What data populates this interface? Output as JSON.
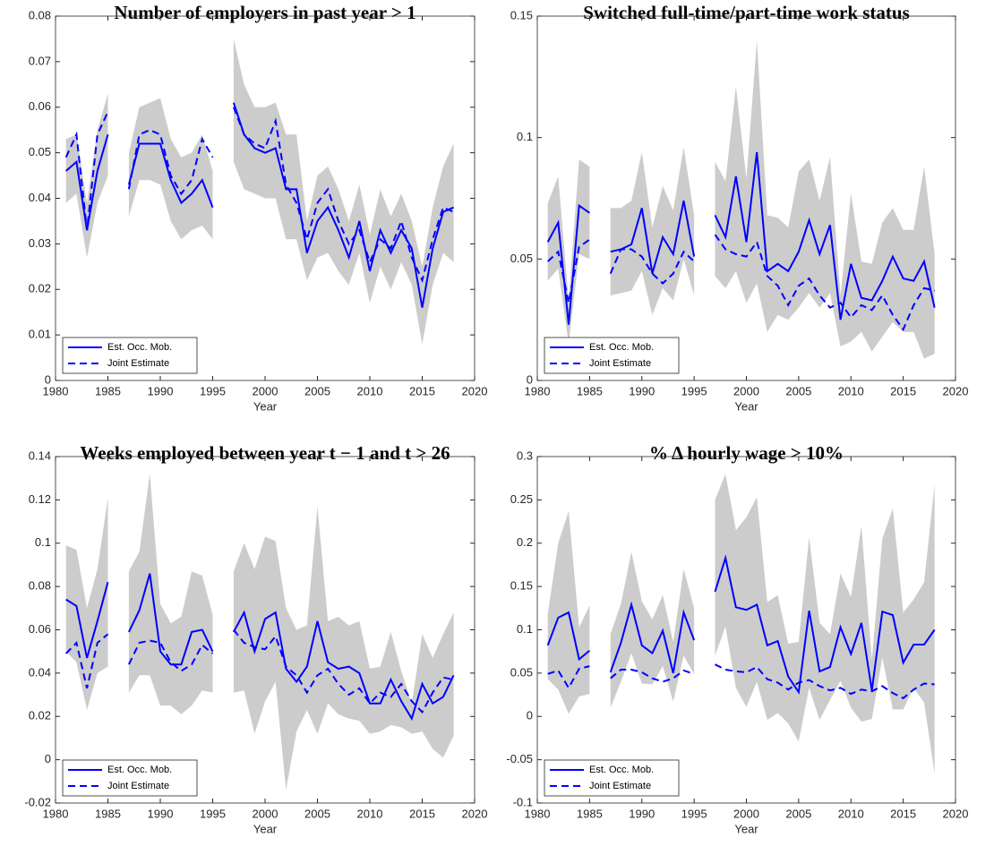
{
  "chart_data": [
    {
      "type": "line",
      "title": "Number of employers in past year > 1",
      "xlabel": "Year",
      "x": [
        1981,
        1982,
        1983,
        1984,
        1985,
        1986,
        1987,
        1988,
        1989,
        1990,
        1991,
        1992,
        1993,
        1994,
        1995,
        1996,
        1997,
        1998,
        1999,
        2000,
        2001,
        2002,
        2003,
        2004,
        2005,
        2006,
        2007,
        2008,
        2009,
        2010,
        2011,
        2012,
        2013,
        2014,
        2015,
        2016,
        2017,
        2018
      ],
      "xlim": [
        1980,
        2020
      ],
      "xticks": [
        1980,
        1985,
        1990,
        1995,
        2000,
        2005,
        2010,
        2015,
        2020
      ],
      "ylim": [
        0,
        0.08
      ],
      "yticks": [
        0,
        0.01,
        0.02,
        0.03,
        0.04,
        0.05,
        0.06,
        0.07,
        0.08
      ],
      "legend": "lower left",
      "series": [
        {
          "name": "Est. Occ. Mob.",
          "color": "#0000ff",
          "dash": false,
          "values": [
            0.046,
            0.048,
            0.033,
            0.046,
            0.054,
            null,
            0.043,
            0.052,
            0.052,
            0.052,
            0.044,
            0.039,
            0.041,
            0.044,
            0.038,
            null,
            0.061,
            0.054,
            0.051,
            0.05,
            0.051,
            0.042,
            0.042,
            0.028,
            0.035,
            0.038,
            0.033,
            0.027,
            0.035,
            0.024,
            0.033,
            0.028,
            0.033,
            0.029,
            0.016,
            0.029,
            0.037,
            0.038
          ]
        },
        {
          "name": "Joint Estimate",
          "color": "#0000ff",
          "dash": true,
          "values": [
            0.049,
            0.054,
            0.033,
            0.054,
            0.059,
            null,
            0.042,
            0.054,
            0.055,
            0.054,
            0.045,
            0.041,
            0.044,
            0.053,
            0.049,
            null,
            0.06,
            0.054,
            0.052,
            0.051,
            0.057,
            0.043,
            0.039,
            0.031,
            0.039,
            0.042,
            0.035,
            0.03,
            0.033,
            0.026,
            0.031,
            0.029,
            0.035,
            0.027,
            0.022,
            0.031,
            0.038,
            0.037
          ]
        }
      ],
      "band": {
        "color": "#cccccc",
        "lower": [
          0.039,
          0.041,
          0.027,
          0.039,
          0.045,
          null,
          0.036,
          0.044,
          0.044,
          0.043,
          0.035,
          0.031,
          0.033,
          0.034,
          0.031,
          null,
          0.048,
          0.042,
          0.041,
          0.04,
          0.04,
          0.031,
          0.031,
          0.022,
          0.027,
          0.028,
          0.024,
          0.021,
          0.028,
          0.017,
          0.025,
          0.02,
          0.026,
          0.021,
          0.008,
          0.021,
          0.028,
          0.026
        ],
        "upper": [
          0.053,
          0.054,
          0.039,
          0.055,
          0.063,
          null,
          0.05,
          0.06,
          0.061,
          0.062,
          0.053,
          0.049,
          0.05,
          0.054,
          0.046,
          null,
          0.075,
          0.065,
          0.06,
          0.06,
          0.061,
          0.054,
          0.054,
          0.035,
          0.045,
          0.047,
          0.042,
          0.035,
          0.043,
          0.032,
          0.042,
          0.036,
          0.041,
          0.035,
          0.025,
          0.038,
          0.047,
          0.052
        ]
      }
    },
    {
      "type": "line",
      "title": "Switched full-time/part-time work status",
      "xlabel": "Year",
      "x": [
        1981,
        1982,
        1983,
        1984,
        1985,
        1986,
        1987,
        1988,
        1989,
        1990,
        1991,
        1992,
        1993,
        1994,
        1995,
        1996,
        1997,
        1998,
        1999,
        2000,
        2001,
        2002,
        2003,
        2004,
        2005,
        2006,
        2007,
        2008,
        2009,
        2010,
        2011,
        2012,
        2013,
        2014,
        2015,
        2016,
        2017,
        2018
      ],
      "xlim": [
        1980,
        2020
      ],
      "xticks": [
        1980,
        1985,
        1990,
        1995,
        2000,
        2005,
        2010,
        2015,
        2020
      ],
      "ylim": [
        0,
        0.15
      ],
      "yticks": [
        0,
        0.05,
        0.1,
        0.15
      ],
      "legend": "lower left",
      "series": [
        {
          "name": "Est. Occ. Mob.",
          "color": "#0000ff",
          "dash": false,
          "values": [
            0.057,
            0.065,
            0.023,
            0.072,
            0.069,
            null,
            0.053,
            0.054,
            0.056,
            0.071,
            0.044,
            0.059,
            0.052,
            0.074,
            0.051,
            null,
            0.068,
            0.059,
            0.084,
            0.057,
            0.094,
            0.045,
            0.048,
            0.045,
            0.053,
            0.066,
            0.052,
            0.064,
            0.025,
            0.048,
            0.034,
            0.033,
            0.041,
            0.051,
            0.042,
            0.041,
            0.049,
            0.03
          ]
        },
        {
          "name": "Joint Estimate",
          "color": "#0000ff",
          "dash": true,
          "values": [
            0.049,
            0.053,
            0.032,
            0.055,
            0.058,
            null,
            0.044,
            0.054,
            0.054,
            0.051,
            0.044,
            0.04,
            0.044,
            0.053,
            0.049,
            null,
            0.06,
            0.054,
            0.052,
            0.051,
            0.057,
            0.043,
            0.039,
            0.031,
            0.039,
            0.042,
            0.035,
            0.03,
            0.032,
            0.026,
            0.031,
            0.029,
            0.035,
            0.027,
            0.021,
            0.031,
            0.038,
            0.037
          ]
        }
      ],
      "band": {
        "color": "#cccccc",
        "lower": [
          0.041,
          0.046,
          0.015,
          0.052,
          0.05,
          null,
          0.035,
          0.036,
          0.037,
          0.045,
          0.027,
          0.038,
          0.033,
          0.05,
          0.035,
          null,
          0.043,
          0.038,
          0.045,
          0.032,
          0.04,
          0.02,
          0.027,
          0.025,
          0.03,
          0.036,
          0.03,
          0.036,
          0.014,
          0.016,
          0.02,
          0.012,
          0.018,
          0.024,
          0.02,
          0.02,
          0.009,
          0.011
        ],
        "upper": [
          0.073,
          0.084,
          0.033,
          0.091,
          0.088,
          null,
          0.071,
          0.071,
          0.074,
          0.094,
          0.063,
          0.08,
          0.07,
          0.096,
          0.068,
          null,
          0.09,
          0.082,
          0.121,
          0.083,
          0.14,
          0.068,
          0.067,
          0.063,
          0.086,
          0.091,
          0.074,
          0.092,
          0.035,
          0.077,
          0.049,
          0.048,
          0.065,
          0.071,
          0.062,
          0.062,
          0.088,
          0.052
        ]
      }
    },
    {
      "type": "line",
      "title": "Weeks employed between year t − 1 and t > 26",
      "xlabel": "Year",
      "x": [
        1981,
        1982,
        1983,
        1984,
        1985,
        1986,
        1987,
        1988,
        1989,
        1990,
        1991,
        1992,
        1993,
        1994,
        1995,
        1996,
        1997,
        1998,
        1999,
        2000,
        2001,
        2002,
        2003,
        2004,
        2005,
        2006,
        2007,
        2008,
        2009,
        2010,
        2011,
        2012,
        2013,
        2014,
        2015,
        2016,
        2017,
        2018
      ],
      "xlim": [
        1980,
        2020
      ],
      "xticks": [
        1980,
        1985,
        1990,
        1995,
        2000,
        2005,
        2010,
        2015,
        2020
      ],
      "ylim": [
        -0.02,
        0.14
      ],
      "yticks": [
        -0.02,
        0,
        0.02,
        0.04,
        0.06,
        0.08,
        0.1,
        0.12,
        0.14
      ],
      "legend": "lower left",
      "series": [
        {
          "name": "Est. Occ. Mob.",
          "color": "#0000ff",
          "dash": false,
          "values": [
            0.074,
            0.071,
            0.047,
            0.064,
            0.082,
            null,
            0.059,
            0.069,
            0.086,
            0.05,
            0.044,
            0.044,
            0.059,
            0.06,
            0.05,
            null,
            0.059,
            0.068,
            0.05,
            0.065,
            0.068,
            0.042,
            0.036,
            0.043,
            0.064,
            0.045,
            0.042,
            0.043,
            0.04,
            0.026,
            0.026,
            0.037,
            0.027,
            0.019,
            0.035,
            0.026,
            0.029,
            0.039
          ]
        },
        {
          "name": "Joint Estimate",
          "color": "#0000ff",
          "dash": true,
          "values": [
            0.049,
            0.054,
            0.033,
            0.054,
            0.058,
            null,
            0.044,
            0.054,
            0.055,
            0.054,
            0.045,
            0.041,
            0.044,
            0.053,
            0.049,
            null,
            0.06,
            0.054,
            0.052,
            0.051,
            0.057,
            0.043,
            0.039,
            0.031,
            0.039,
            0.042,
            0.035,
            0.03,
            0.033,
            0.026,
            0.031,
            0.029,
            0.035,
            0.027,
            0.022,
            0.031,
            0.038,
            0.037
          ]
        }
      ],
      "band": {
        "color": "#cccccc",
        "lower": [
          0.05,
          0.045,
          0.023,
          0.04,
          0.043,
          null,
          0.031,
          0.039,
          0.039,
          0.025,
          0.025,
          0.021,
          0.025,
          0.032,
          0.031,
          null,
          0.031,
          0.032,
          0.012,
          0.027,
          0.036,
          -0.014,
          0.013,
          0.023,
          0.012,
          0.026,
          0.021,
          0.019,
          0.018,
          0.012,
          0.013,
          0.016,
          0.015,
          0.012,
          0.013,
          0.005,
          0.001,
          0.011
        ],
        "upper": [
          0.099,
          0.097,
          0.07,
          0.088,
          0.121,
          null,
          0.087,
          0.096,
          0.132,
          0.072,
          0.063,
          0.066,
          0.087,
          0.085,
          0.067,
          null,
          0.087,
          0.1,
          0.088,
          0.103,
          0.101,
          0.07,
          0.06,
          0.062,
          0.117,
          0.064,
          0.066,
          0.062,
          0.064,
          0.042,
          0.043,
          0.059,
          0.041,
          0.026,
          0.058,
          0.047,
          0.058,
          0.068
        ]
      }
    },
    {
      "type": "line",
      "title": "% Δ hourly wage > 10%",
      "xlabel": "Year",
      "x": [
        1981,
        1982,
        1983,
        1984,
        1985,
        1986,
        1987,
        1988,
        1989,
        1990,
        1991,
        1992,
        1993,
        1994,
        1995,
        1996,
        1997,
        1998,
        1999,
        2000,
        2001,
        2002,
        2003,
        2004,
        2005,
        2006,
        2007,
        2008,
        2009,
        2010,
        2011,
        2012,
        2013,
        2014,
        2015,
        2016,
        2017,
        2018
      ],
      "xlim": [
        1980,
        2020
      ],
      "xticks": [
        1980,
        1985,
        1990,
        1995,
        2000,
        2005,
        2010,
        2015,
        2020
      ],
      "ylim": [
        -0.1,
        0.3
      ],
      "yticks": [
        -0.1,
        -0.05,
        0,
        0.05,
        0.1,
        0.15,
        0.2,
        0.25,
        0.3
      ],
      "legend": "lower left",
      "series": [
        {
          "name": "Est. Occ. Mob.",
          "color": "#0000ff",
          "dash": false,
          "values": [
            0.082,
            0.114,
            0.12,
            0.066,
            0.076,
            null,
            0.051,
            0.085,
            0.129,
            0.082,
            0.073,
            0.099,
            0.05,
            0.12,
            0.088,
            null,
            0.144,
            0.183,
            0.126,
            0.123,
            0.129,
            0.082,
            0.087,
            0.046,
            0.028,
            0.122,
            0.052,
            0.057,
            0.103,
            0.072,
            0.108,
            0.03,
            0.121,
            0.117,
            0.062,
            0.083,
            0.083,
            0.1
          ]
        },
        {
          "name": "Joint Estimate",
          "color": "#0000ff",
          "dash": true,
          "values": [
            0.049,
            0.053,
            0.033,
            0.055,
            0.058,
            null,
            0.044,
            0.054,
            0.054,
            0.051,
            0.044,
            0.04,
            0.044,
            0.053,
            0.049,
            null,
            0.06,
            0.054,
            0.052,
            0.051,
            0.057,
            0.043,
            0.039,
            0.031,
            0.039,
            0.042,
            0.035,
            0.03,
            0.033,
            0.026,
            0.031,
            0.029,
            0.035,
            0.027,
            0.021,
            0.031,
            0.038,
            0.037
          ]
        }
      ],
      "band": {
        "color": "#cccccc",
        "lower": [
          0.043,
          0.031,
          0.003,
          0.023,
          0.026,
          null,
          0.01,
          0.04,
          0.073,
          0.038,
          0.037,
          0.058,
          0.017,
          0.07,
          0.049,
          null,
          0.07,
          0.104,
          0.033,
          0.011,
          0.04,
          -0.004,
          0.004,
          -0.008,
          -0.029,
          0.033,
          -0.004,
          0.019,
          0.041,
          0.01,
          -0.006,
          -0.003,
          0.068,
          0.008,
          0.008,
          0.033,
          0.016,
          -0.066
        ],
        "upper": [
          0.118,
          0.2,
          0.237,
          0.103,
          0.128,
          null,
          0.095,
          0.13,
          0.19,
          0.133,
          0.112,
          0.14,
          0.086,
          0.17,
          0.125,
          null,
          0.25,
          0.28,
          0.215,
          0.23,
          0.253,
          0.132,
          0.14,
          0.084,
          0.086,
          0.207,
          0.108,
          0.095,
          0.165,
          0.138,
          0.22,
          0.065,
          0.205,
          0.24,
          0.12,
          0.135,
          0.155,
          0.268
        ]
      }
    }
  ]
}
